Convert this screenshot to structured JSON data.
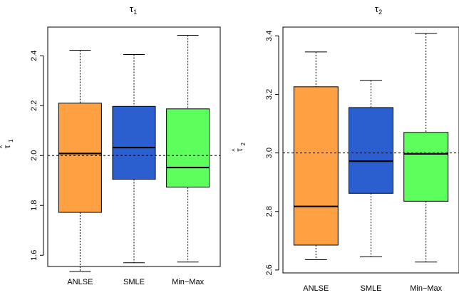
{
  "chart_data": [
    {
      "type": "box",
      "title": "τ",
      "title_sub": "1",
      "ylabel": "τ",
      "ylabel_hat": "^",
      "ylabel_sub": "1",
      "ylim": [
        1.555,
        2.515
      ],
      "yticks": [
        1.6,
        1.8,
        2.0,
        2.2,
        2.4
      ],
      "ytick_labels": [
        "1.6",
        "1.8",
        "2.0",
        "2.2",
        "2.4"
      ],
      "reference_line": 2.0,
      "grid": false,
      "categories": [
        "ANLSE",
        "SMLE",
        "Min−Max"
      ],
      "series": [
        {
          "whisker_low": 1.535,
          "q1": 1.772,
          "median": 2.008,
          "q3": 2.21,
          "whisker_high": 2.422,
          "color": "#FFA042"
        },
        {
          "whisker_low": 1.57,
          "q1": 1.905,
          "median": 2.032,
          "q3": 2.197,
          "whisker_high": 2.405,
          "color": "#2B5FD0"
        },
        {
          "whisker_low": 1.573,
          "q1": 1.873,
          "median": 1.952,
          "q3": 2.187,
          "whisker_high": 2.482,
          "color": "#5CFF5C"
        }
      ]
    },
    {
      "type": "box",
      "title": "τ",
      "title_sub": "2",
      "ylabel": "τ",
      "ylabel_hat": "^",
      "ylabel_sub": "2",
      "ylim": [
        2.59,
        3.43
      ],
      "yticks": [
        2.6,
        2.8,
        3.0,
        3.2,
        3.4
      ],
      "ytick_labels": [
        "2.6",
        "2.8",
        "3.0",
        "3.2",
        "3.4"
      ],
      "reference_line": 3.0,
      "grid": false,
      "categories": [
        "ANLSE",
        "SMLE",
        "Min−Max"
      ],
      "series": [
        {
          "whisker_low": 2.635,
          "q1": 2.685,
          "median": 2.817,
          "q3": 3.226,
          "whisker_high": 3.345,
          "color": "#FFA042"
        },
        {
          "whisker_low": 2.645,
          "q1": 2.862,
          "median": 2.972,
          "q3": 3.155,
          "whisker_high": 3.248,
          "color": "#2B5FD0"
        },
        {
          "whisker_low": 2.627,
          "q1": 2.835,
          "median": 2.997,
          "q3": 3.07,
          "whisker_high": 3.408,
          "color": "#5CFF5C"
        }
      ]
    }
  ]
}
